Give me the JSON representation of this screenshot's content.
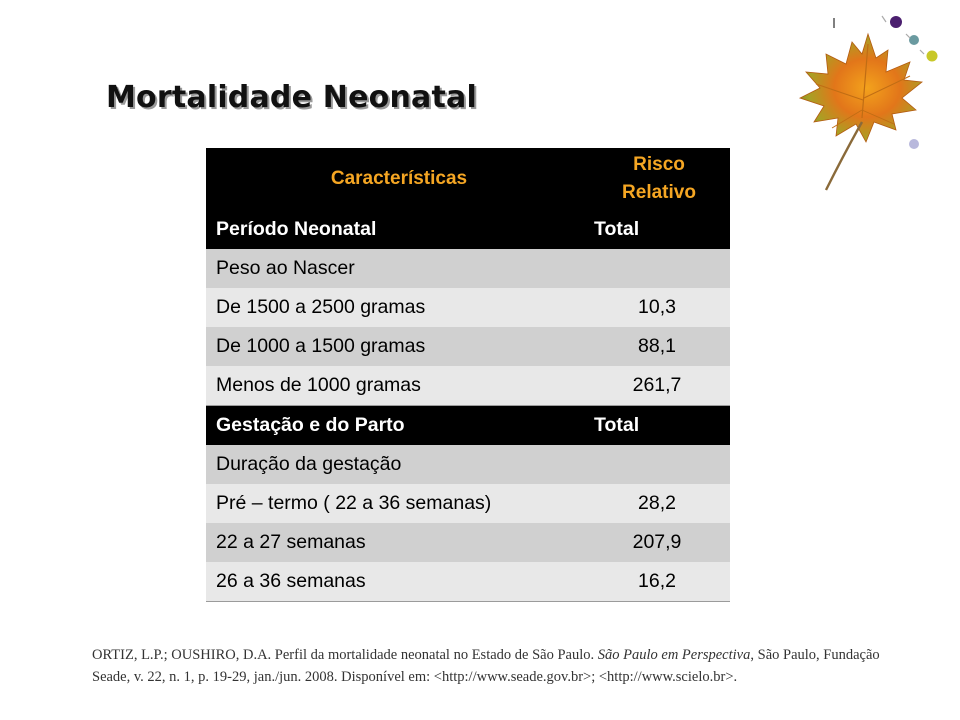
{
  "title": "Mortalidade Neonatal",
  "table": {
    "headers": [
      "Características",
      "Risco Relativo"
    ],
    "header_line_1": "Risco",
    "header_line_2": "Relativo",
    "sections": [
      {
        "label": "Período Neonatal",
        "value_label": "Total",
        "rows": [
          {
            "label": "Peso ao Nascer",
            "value": ""
          },
          {
            "label": "De 1500 a 2500 gramas",
            "value": "10,3"
          },
          {
            "label": "De 1000 a  1500 gramas",
            "value": "88,1"
          },
          {
            "label": "Menos de 1000 gramas",
            "value": "261,7"
          }
        ]
      },
      {
        "label": "Gestação e do Parto",
        "value_label": "Total",
        "rows": [
          {
            "label": "Duração da gestação",
            "value": ""
          },
          {
            "label": "Pré – termo ( 22 a 36 semanas)",
            "value": "28,2"
          },
          {
            "label": "22 a 27 semanas",
            "value": "207,9"
          },
          {
            "label": "26 a 36 semanas",
            "value": "16,2"
          }
        ]
      }
    ]
  },
  "reference": {
    "part1": "ORTIZ, L.P.; OUSHIRO, D.A. Perfil da mortalidade neonatal no Estado de São Paulo. ",
    "journal": "São Paulo em Perspectiva",
    "part2": ", São Paulo, Fundação Seade, v. 22, n. 1, p. 19-29, jan./jun. 2008. Disponível em: <http://www.seade.gov.br>; <http://www.scielo.br>."
  },
  "colors": {
    "header_bg": "#000000",
    "header_text": "#f5a623",
    "row_dark": "#d0d0d0",
    "row_light": "#e8e8e8",
    "dot_purple": "#4b1f6f",
    "dot_teal": "#6a9aa0",
    "dot_lime": "#c8c828"
  },
  "decoration": {
    "icon": "maple-leaf-icon"
  }
}
